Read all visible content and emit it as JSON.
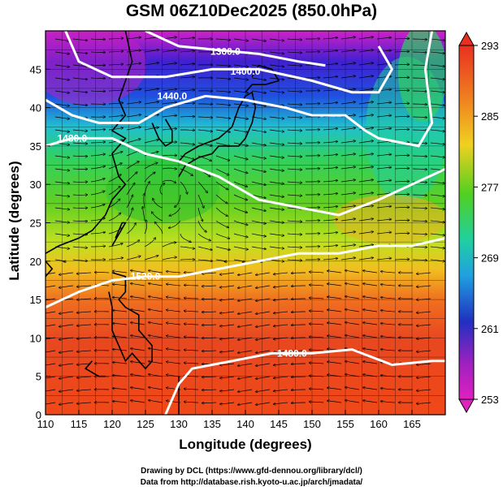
{
  "title": "GSM 06Z10Dec2025 (850.0hPa)",
  "axes": {
    "xlabel": "Longitude (degrees)",
    "ylabel": "Latitude  (degrees)",
    "x_ticks": [
      "110",
      "115",
      "120",
      "125",
      "130",
      "135",
      "140",
      "145",
      "150",
      "155",
      "160",
      "165"
    ],
    "y_ticks": [
      "0",
      "5",
      "10",
      "15",
      "20",
      "25",
      "30",
      "35",
      "40",
      "45"
    ],
    "x_range": [
      110,
      170
    ],
    "y_range": [
      0,
      50
    ]
  },
  "colorbar": {
    "ticks": [
      "293",
      "285",
      "277",
      "269",
      "261",
      "253"
    ],
    "range": [
      253,
      293
    ],
    "colors": [
      "#d020d0",
      "#2020c0",
      "#20c0e0",
      "#20c040",
      "#a0e020",
      "#f0b020",
      "#e04010"
    ]
  },
  "contours": [
    {
      "label": "1360.0",
      "value": 1360
    },
    {
      "label": "1400.0",
      "value": 1400
    },
    {
      "label": "1440.0",
      "value": 1440
    },
    {
      "label": "1480.0",
      "value": 1480
    },
    {
      "label": "1520.0",
      "value": 1520
    },
    {
      "label": "1480.0",
      "value": 1480
    }
  ],
  "credits": {
    "line1": "Drawing by DCL (https://www.gfd-dennou.org/library/dcl/)",
    "line2": "Data from http://database.rish.kyoto-u.ac.jp/arch/jmadata/"
  }
}
